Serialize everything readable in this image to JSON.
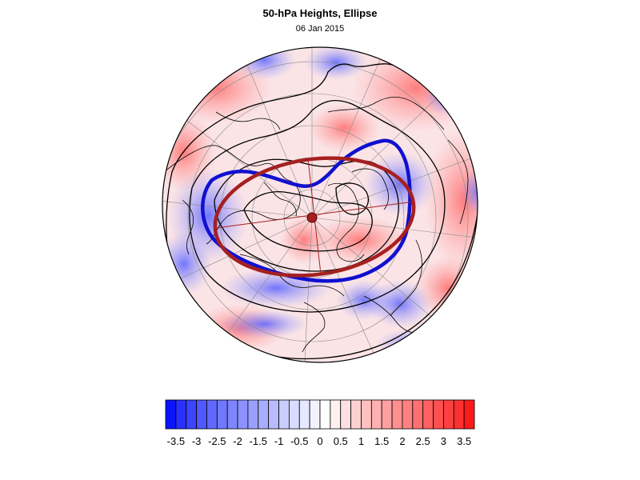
{
  "header": {
    "title": "50-hPa Heights, Ellipse",
    "date": "06 Jan 2015"
  },
  "map": {
    "projection": "polar stereographic (north pole)",
    "field": "anomaly shading blue-white-red",
    "contours": "black height contours",
    "blue_contour_color": "#1010d0",
    "ellipse_color": "#a52020",
    "coastline_color": "#000000",
    "gridline_color": "#888888"
  },
  "colorbar": {
    "labels": [
      "-3.5",
      "-3",
      "-2.5",
      "-2",
      "-1.5",
      "-1",
      "-0.5",
      "0",
      "0.5",
      "1",
      "1.5",
      "2",
      "2.5",
      "3",
      "3.5"
    ],
    "levels": [
      -3.75,
      -3.5,
      -3.25,
      -3,
      -2.75,
      -2.5,
      -2.25,
      -2,
      -1.75,
      -1.5,
      -1.25,
      -1,
      -0.75,
      -0.5,
      -0.25,
      0,
      0.25,
      0.5,
      0.75,
      1,
      1.25,
      1.5,
      1.75,
      2,
      2.25,
      2.5,
      2.75,
      3,
      3.25,
      3.5,
      3.75
    ],
    "colors": [
      "#0a14ff",
      "#2a30ff",
      "#3c44ff",
      "#5058ff",
      "#6068ff",
      "#7078ff",
      "#7e86ff",
      "#8c92ff",
      "#9aa0ff",
      "#a8aeff",
      "#b8bcff",
      "#c8ccff",
      "#d8dcff",
      "#e6e8ff",
      "#f2f3ff",
      "#ffffff",
      "#fff0f0",
      "#ffe0e0",
      "#ffd0d0",
      "#ffc0c0",
      "#ffb0b0",
      "#ffa0a0",
      "#ff9090",
      "#ff8080",
      "#ff7070",
      "#ff6060",
      "#ff5050",
      "#ff4040",
      "#ff3030",
      "#ff1a1a"
    ]
  }
}
